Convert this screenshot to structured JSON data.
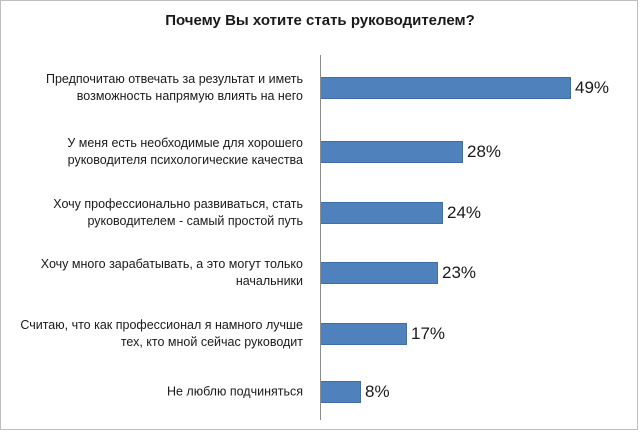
{
  "chart_data": {
    "type": "bar",
    "orientation": "horizontal",
    "title": "Почему Вы хотите стать руководителем?",
    "categories": [
      "Предпочитаю отвечать за результат и иметь возможность напрямую влиять на него",
      "У меня есть необходимые для хорошего руководителя психологические качества",
      "Хочу профессионально развиваться, стать руководителем - самый простой путь",
      "Хочу много зарабатывать, а это могут только начальники",
      "Считаю, что как профессионал я намного лучше тех, кто мной сейчас руководит",
      "Не люблю подчиняться"
    ],
    "values": [
      49,
      28,
      24,
      23,
      17,
      8
    ],
    "value_labels": [
      "49%",
      "28%",
      "24%",
      "23%",
      "17%",
      "8%"
    ],
    "unit": "%",
    "bar_color": "#4f81bd",
    "xlim": [
      0,
      49
    ],
    "grid": false,
    "legend": "none"
  }
}
